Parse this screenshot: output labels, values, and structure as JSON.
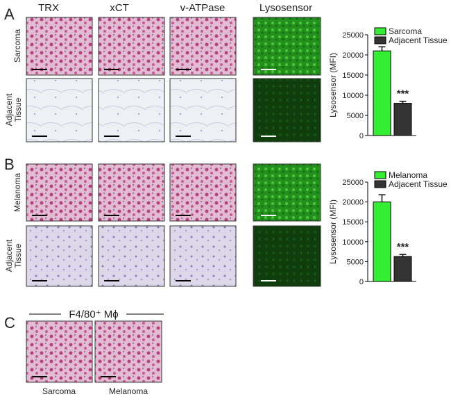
{
  "panels": [
    "A",
    "B",
    "C"
  ],
  "columns": [
    "TRX",
    "xCT",
    "v-ATPase",
    "Lysosensor"
  ],
  "row_labels": [
    [
      [
        "Sarcoma"
      ],
      [
        "Adjacent",
        "Tissue"
      ]
    ],
    [
      [
        "Melanoma"
      ],
      [
        "Adjacent",
        "Tissue"
      ]
    ]
  ],
  "panel_c": {
    "header": "F4/80⁺ Mϕ",
    "labels": [
      "Sarcoma",
      "Melanoma"
    ]
  },
  "chart_data": [
    {
      "type": "bar",
      "ylabel": "Lysosensor (MFI)",
      "ylim": [
        0,
        25000
      ],
      "yticks": [
        0,
        5000,
        10000,
        15000,
        20000,
        25000
      ],
      "annotation": "***",
      "series": [
        {
          "name": "Sarcoma",
          "color": "#33ee33",
          "values": [
            21000
          ],
          "errors": [
            1000
          ]
        },
        {
          "name": "Adjacent Tissue",
          "color": "#333333",
          "values": [
            8000
          ],
          "errors": [
            500
          ]
        }
      ]
    },
    {
      "type": "bar",
      "ylabel": "Lysosensor (MFI)",
      "ylim": [
        0,
        25000
      ],
      "yticks": [
        0,
        5000,
        10000,
        15000,
        20000,
        25000
      ],
      "annotation": "***",
      "series": [
        {
          "name": "Melanoma",
          "color": "#33ee33",
          "values": [
            20000
          ],
          "errors": [
            1800
          ]
        },
        {
          "name": "Adjacent Tissue",
          "color": "#333333",
          "values": [
            6300
          ],
          "errors": [
            500
          ]
        }
      ]
    }
  ]
}
